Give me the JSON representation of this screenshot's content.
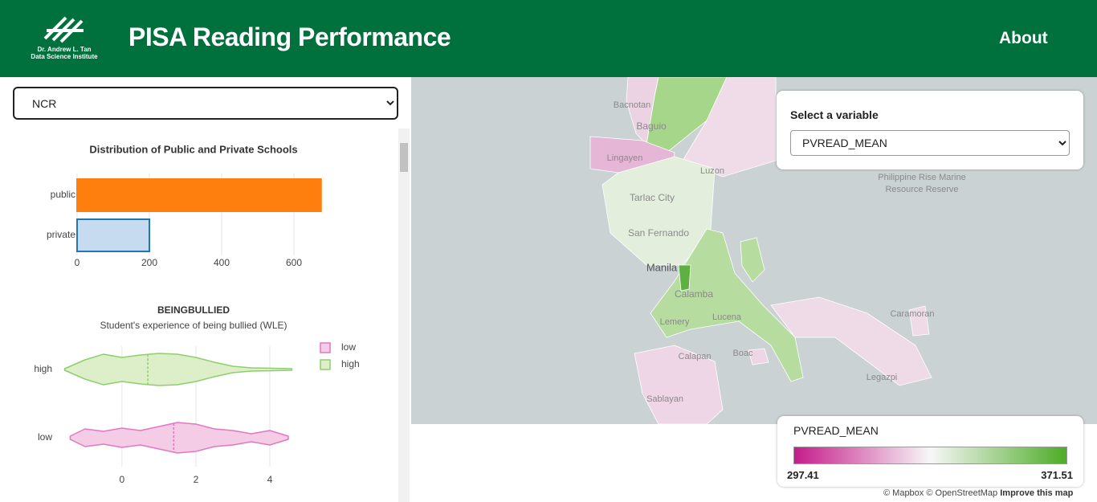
{
  "header": {
    "logo_line1": "Dr. Andrew L. Tan",
    "logo_line2": "Data Science Institute",
    "title": "PISA Reading Performance",
    "nav": "About"
  },
  "sidebar": {
    "region": "NCR"
  },
  "chart_data": [
    {
      "type": "bar",
      "orientation": "horizontal",
      "title": "Distribution of Public and Private Schools",
      "categories": [
        "public",
        "private"
      ],
      "values": [
        675,
        200
      ],
      "colors": [
        "#ff7f0e",
        "#c6dbef"
      ],
      "edge_colors": [
        "#ff7f0e",
        "#1f77b4"
      ],
      "xlim": [
        0,
        700
      ],
      "xticks": [
        0,
        200,
        400,
        600
      ],
      "grid": true
    },
    {
      "type": "violin",
      "title": "BEINGBULLIED",
      "subtitle": "Student's experience of being bullied (WLE)",
      "categories": [
        "high",
        "low"
      ],
      "xlim": [
        -1.8,
        5
      ],
      "xticks": [
        0,
        2,
        4
      ],
      "grid": true,
      "legend": "upper right",
      "series": [
        {
          "name": "low",
          "color": "#e377c2",
          "fill": "#f4cce6",
          "median": 1.4,
          "x": [
            -1.4,
            -1.0,
            -0.5,
            0.0,
            0.5,
            1.0,
            1.5,
            2.0,
            2.5,
            3.0,
            3.5,
            4.0,
            4.5
          ],
          "width": [
            0.1,
            0.55,
            0.4,
            0.6,
            0.45,
            0.7,
            0.95,
            0.85,
            0.55,
            0.45,
            0.25,
            0.45,
            0.1
          ]
        },
        {
          "name": "high",
          "color": "#8fce6d",
          "fill": "#dcefc9",
          "median": 0.7,
          "x": [
            -1.55,
            -1.0,
            -0.5,
            0.0,
            0.5,
            1.0,
            1.5,
            2.0,
            2.5,
            3.0,
            3.5,
            4.0,
            4.6
          ],
          "width": [
            0.05,
            0.6,
            0.95,
            0.75,
            0.9,
            1.0,
            0.95,
            0.75,
            0.45,
            0.2,
            0.1,
            0.08,
            0.05
          ]
        }
      ]
    }
  ],
  "map": {
    "variable_label": "Select a variable",
    "variable": "PVREAD_MEAN",
    "labels": [
      "Bacnotan",
      "Baguio",
      "Lingayen",
      "Luzon",
      "Tarlac City",
      "San Fernando",
      "Manila",
      "Calamba",
      "Lucena",
      "Lemery",
      "Calapan",
      "Boac",
      "Sablayan",
      "Caramoran",
      "Legazpi",
      "Philippine Rise Marine",
      "Resource Reserve"
    ],
    "legend": {
      "title": "PVREAD_MEAN",
      "min": "297.41",
      "max": "371.51",
      "colors": [
        "#c51b8a",
        "#f7f7f7",
        "#4dac26"
      ]
    },
    "attribution": "© Mapbox © OpenStreetMap",
    "improve": "Improve this map"
  }
}
